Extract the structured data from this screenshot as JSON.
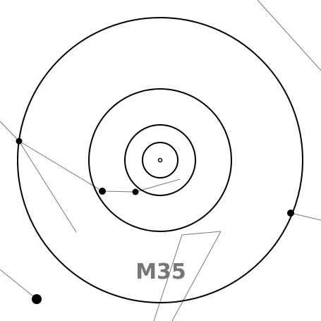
{
  "object_label": "M35",
  "colors": {
    "rings": "#000000",
    "constellation_lines": "#777777",
    "stars": "#000000",
    "label": "#777777",
    "background": "#ffffff"
  }
}
